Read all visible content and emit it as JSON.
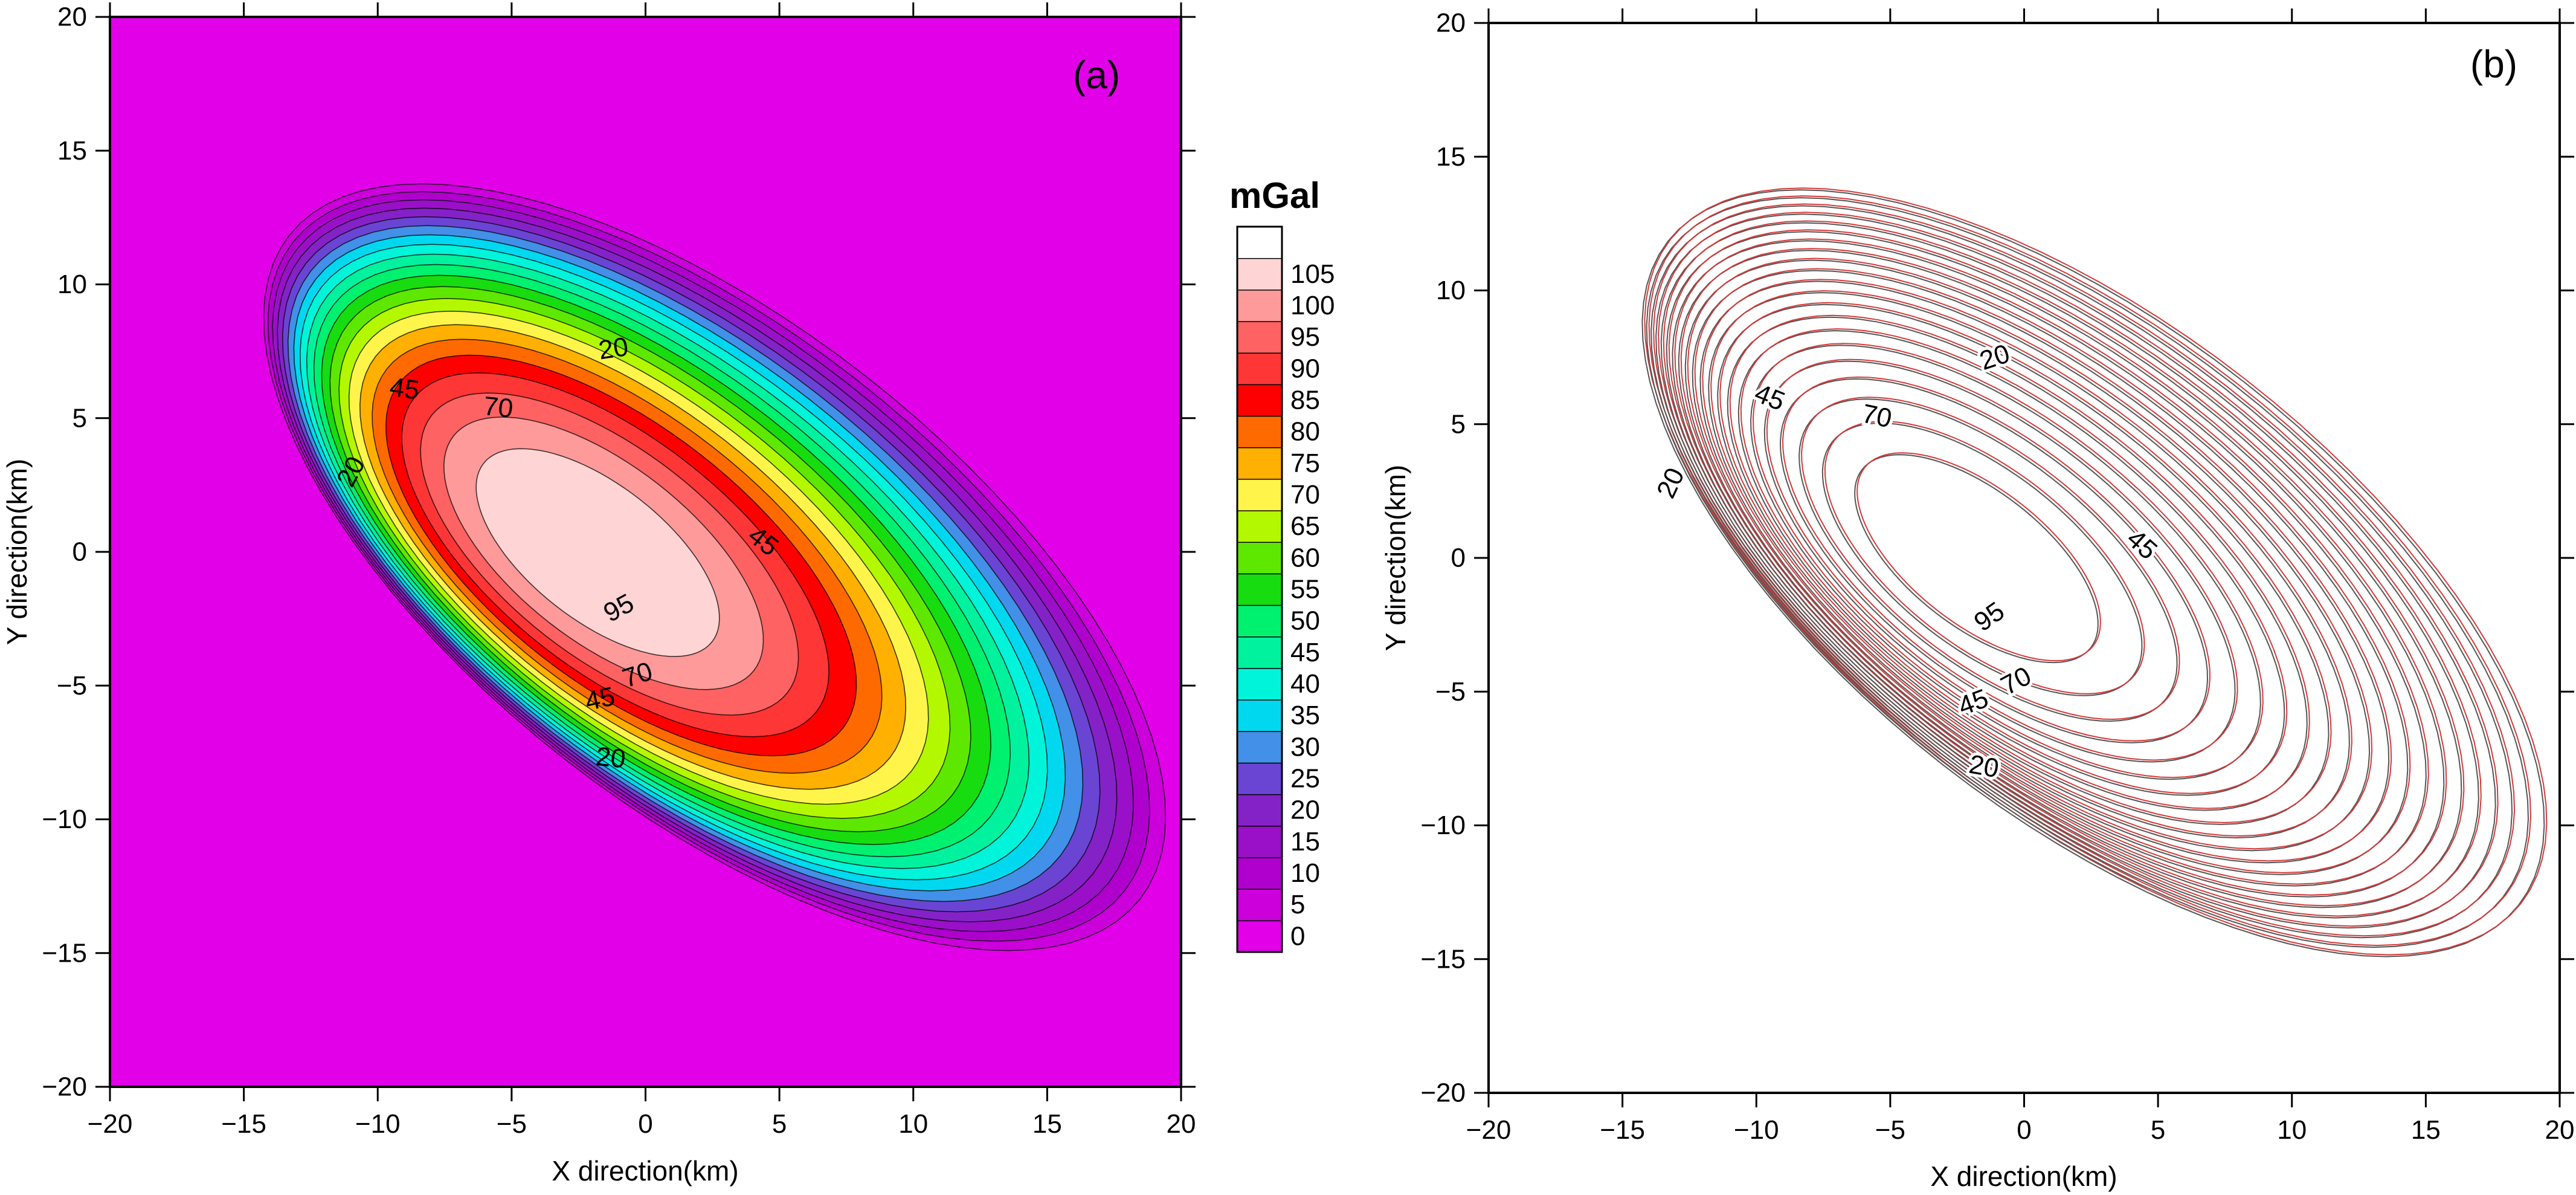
{
  "chart_data": [
    {
      "type": "heatmap",
      "panel_label": "(a)",
      "xlabel": "X direction(km)",
      "ylabel": "Y direction(km)",
      "xlim": [
        -20,
        20
      ],
      "ylim": [
        -20,
        20
      ],
      "xticks": [
        -20,
        -15,
        -10,
        -5,
        0,
        5,
        10,
        15,
        20
      ],
      "yticks": [
        -20,
        -15,
        -10,
        -5,
        0,
        5,
        10,
        15,
        20
      ],
      "background_color": "#E100E8",
      "peak_location": [
        -2,
        0
      ],
      "levels": [
        5,
        10,
        15,
        20,
        25,
        30,
        35,
        40,
        45,
        50,
        55,
        60,
        65,
        70,
        75,
        80,
        85,
        90,
        95,
        100,
        105
      ],
      "contour_labels": [
        {
          "text": "20",
          "x": -11.0,
          "y": 3.0,
          "angle": 62
        },
        {
          "text": "20",
          "x": -1.2,
          "y": 7.6,
          "angle": 8
        },
        {
          "text": "20",
          "x": -1.3,
          "y": -7.7,
          "angle": -6
        },
        {
          "text": "45",
          "x": -9.0,
          "y": 6.1,
          "angle": -8
        },
        {
          "text": "45",
          "x": 4.4,
          "y": 0.4,
          "angle": -38
        },
        {
          "text": "45",
          "x": -1.7,
          "y": -5.5,
          "angle": 12
        },
        {
          "text": "70",
          "x": -5.5,
          "y": 5.4,
          "angle": -6
        },
        {
          "text": "70",
          "x": -0.3,
          "y": -4.6,
          "angle": 18
        },
        {
          "text": "95",
          "x": -1.0,
          "y": -2.1,
          "angle": 28
        }
      ],
      "colorbar": {
        "title": "mGal",
        "labels": [
          "0",
          "5",
          "10",
          "15",
          "20",
          "25",
          "30",
          "35",
          "40",
          "45",
          "50",
          "55",
          "60",
          "65",
          "70",
          "75",
          "80",
          "85",
          "90",
          "95",
          "100",
          "105"
        ],
        "colors": [
          "#E100E8",
          "#CB00DB",
          "#B000CE",
          "#9A10C8",
          "#8422C8",
          "#6A45D4",
          "#4290E8",
          "#00D8F0",
          "#00F4DA",
          "#00F29E",
          "#00F070",
          "#17DC10",
          "#5EE800",
          "#B4F800",
          "#FFF54A",
          "#FFB000",
          "#FF6A00",
          "#FF0000",
          "#FF3636",
          "#FF6262",
          "#FF9A9A",
          "#FFD4D4",
          "#FFFFFF"
        ]
      }
    },
    {
      "type": "heatmap",
      "panel_label": "(b)",
      "xlabel": "X direction(km)",
      "ylabel": "Y direction(km)",
      "xlim": [
        -20,
        20
      ],
      "ylim": [
        -20,
        20
      ],
      "xticks": [
        -20,
        -15,
        -10,
        -5,
        0,
        5,
        10,
        15,
        20
      ],
      "yticks": [
        -20,
        -15,
        -10,
        -5,
        0,
        5,
        10,
        15,
        20
      ],
      "line_colors": [
        "#555555",
        "#D43A3A"
      ],
      "contour_labels": [
        {
          "text": "20",
          "x": -13.2,
          "y": 2.8,
          "angle": 65
        },
        {
          "text": "20",
          "x": -1.1,
          "y": 7.5,
          "angle": 18
        },
        {
          "text": "20",
          "x": -1.5,
          "y": -7.8,
          "angle": -10
        },
        {
          "text": "45",
          "x": -9.5,
          "y": 6.0,
          "angle": -22
        },
        {
          "text": "45",
          "x": 4.4,
          "y": 0.5,
          "angle": -42
        },
        {
          "text": "45",
          "x": -1.9,
          "y": -5.4,
          "angle": 20
        },
        {
          "text": "70",
          "x": -5.5,
          "y": 5.3,
          "angle": -12
        },
        {
          "text": "70",
          "x": -0.3,
          "y": -4.6,
          "angle": 28
        },
        {
          "text": "95",
          "x": -1.3,
          "y": -2.2,
          "angle": 35
        }
      ]
    }
  ]
}
